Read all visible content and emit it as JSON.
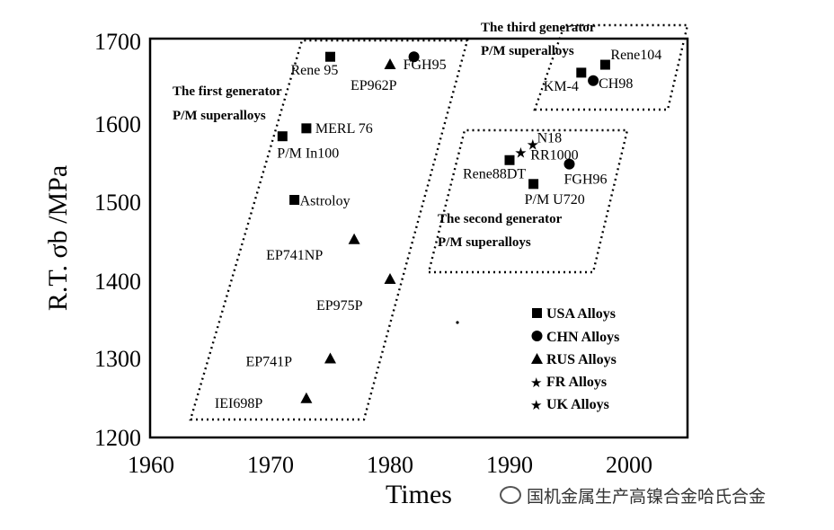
{
  "chart_data": {
    "type": "scatter",
    "xlabel": "Times",
    "ylabel": "R.T. σb /MPa",
    "xlim": [
      1960,
      2005
    ],
    "ylim": [
      1200,
      1710
    ],
    "x_ticks": [
      "1960",
      "1970",
      "1980",
      "1990",
      "2000"
    ],
    "y_ticks": [
      "1200",
      "1300",
      "1400",
      "1500",
      "1600",
      "1700"
    ],
    "legend_position": "bottom-right",
    "series": [
      {
        "name": "USA Alloys",
        "marker": "square",
        "points": [
          {
            "label": "Rene 95",
            "x": 1975,
            "y": 1680
          },
          {
            "label": "MERL 76",
            "x": 1973,
            "y": 1590
          },
          {
            "label": "P/M In100",
            "x": 1971,
            "y": 1580
          },
          {
            "label": "Astroloy",
            "x": 1972,
            "y": 1500
          },
          {
            "label": "Rene88DT",
            "x": 1990,
            "y": 1550
          },
          {
            "label": "P/M U720",
            "x": 1992,
            "y": 1520
          },
          {
            "label": "Rene104",
            "x": 1998,
            "y": 1670
          },
          {
            "label": "KM-4",
            "x": 1996,
            "y": 1660
          }
        ]
      },
      {
        "name": "CHN Alloys",
        "marker": "circle",
        "points": [
          {
            "label": "FGH95",
            "x": 1982,
            "y": 1680
          },
          {
            "label": "FGH96",
            "x": 1995,
            "y": 1545
          },
          {
            "label": "CH98",
            "x": 1997,
            "y": 1650
          }
        ]
      },
      {
        "name": "RUS Alloys",
        "marker": "triangle",
        "points": [
          {
            "label": "EP962P",
            "x": 1980,
            "y": 1670
          },
          {
            "label": "EP741NP",
            "x": 1977,
            "y": 1450
          },
          {
            "label": "EP975P",
            "x": 1980,
            "y": 1400
          },
          {
            "label": "EP741P",
            "x": 1975,
            "y": 1300
          },
          {
            "label": "IEI698P",
            "x": 1973,
            "y": 1250
          }
        ]
      },
      {
        "name": "FR Alloys",
        "marker": "star",
        "points": [
          {
            "label": "N18",
            "x": 1992,
            "y": 1570
          }
        ]
      },
      {
        "name": "UK Alloys",
        "marker": "star",
        "points": [
          {
            "label": "RR1000",
            "x": 1991,
            "y": 1560
          }
        ]
      }
    ],
    "regions": [
      {
        "label_lines": [
          "The first generator",
          "P/M superalloys"
        ]
      },
      {
        "label_lines": [
          "The second generator",
          "P/M superalloys"
        ]
      },
      {
        "label_lines": [
          "The third generator",
          "P/M superalloys"
        ]
      }
    ]
  },
  "watermark": "国机金属生产高镍合金哈氏合金"
}
